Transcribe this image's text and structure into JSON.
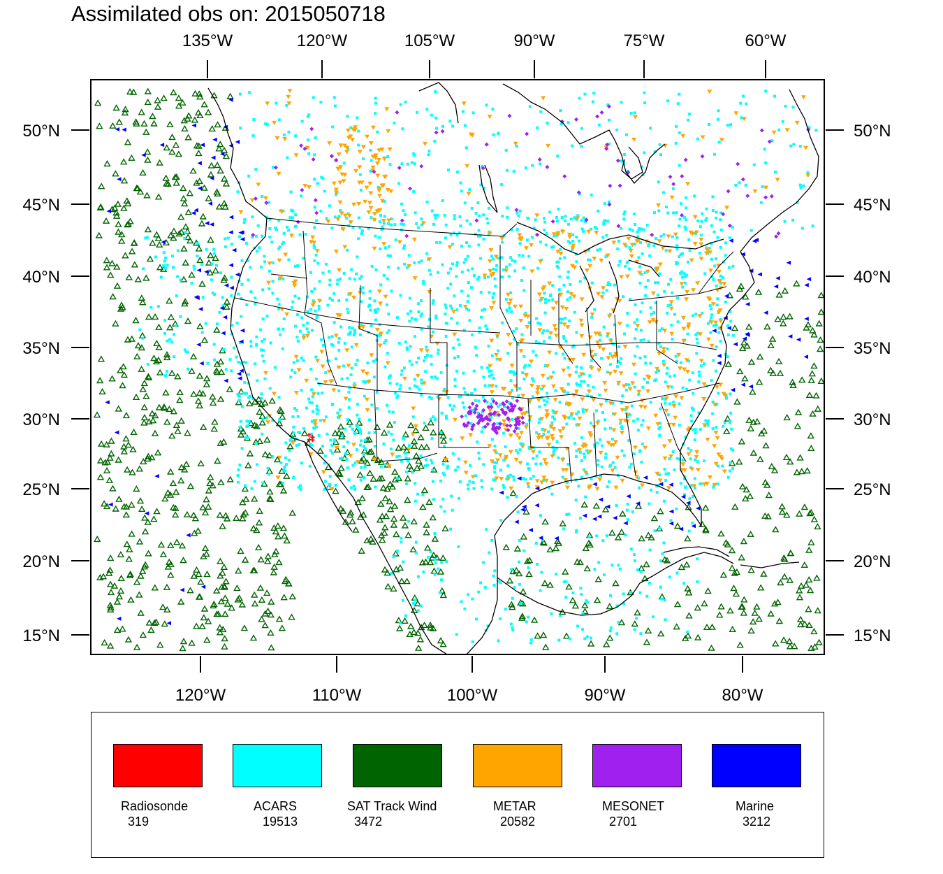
{
  "title": "Assimilated obs on: 2015050718",
  "axes": {
    "top_lon_labels": [
      "135°W",
      "120°W",
      "105°W",
      "90°W",
      "75°W",
      "60°W"
    ],
    "bottom_lon_labels": [
      "120°W",
      "110°W",
      "100°W",
      "90°W",
      "80°W"
    ],
    "lat_labels": [
      "50°N",
      "45°N",
      "40°N",
      "35°N",
      "30°N",
      "25°N",
      "20°N",
      "15°N"
    ]
  },
  "legend": [
    {
      "name": "Radiosonde",
      "count": "319",
      "color": "#ff0000"
    },
    {
      "name": "ACARS",
      "count": "19513",
      "color": "#00ffff"
    },
    {
      "name": "SAT Track Wind",
      "count": "3472",
      "color": "#006400"
    },
    {
      "name": "METAR",
      "count": "20582",
      "color": "#ffa500"
    },
    {
      "name": "MESONET",
      "count": "2701",
      "color": "#a020f0"
    },
    {
      "name": "Marine",
      "count": "3212",
      "color": "#0000ff"
    }
  ],
  "colors": {
    "land_outline": "#000000",
    "background": "#ffffff"
  }
}
